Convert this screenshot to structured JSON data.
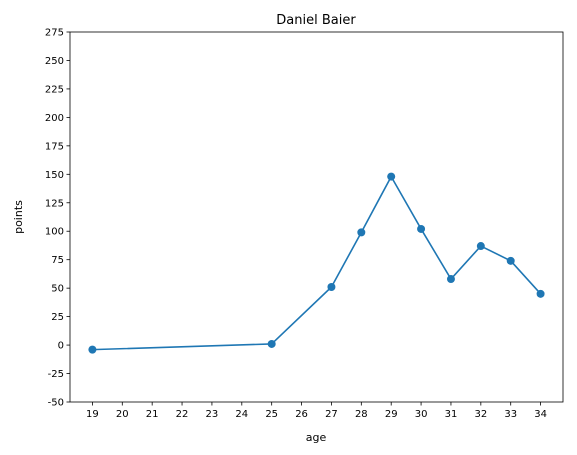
{
  "chart_data": {
    "type": "line",
    "title": "Daniel Baier",
    "xlabel": "age",
    "ylabel": "points",
    "xlim": [
      18.25,
      34.75
    ],
    "ylim": [
      -50,
      275
    ],
    "xticks": [
      19,
      20,
      21,
      22,
      23,
      24,
      25,
      26,
      27,
      28,
      29,
      30,
      31,
      32,
      33,
      34
    ],
    "yticks": [
      -50,
      -25,
      0,
      25,
      50,
      75,
      100,
      125,
      150,
      175,
      200,
      225,
      250,
      275
    ],
    "grid": false,
    "series": [
      {
        "color": "#1f77b4",
        "marker": "circle",
        "x": [
          19,
          25,
          27,
          28,
          29,
          30,
          31,
          32,
          33,
          34
        ],
        "y": [
          -4,
          1,
          51,
          99,
          148,
          102,
          58,
          87,
          74,
          45
        ]
      }
    ]
  }
}
